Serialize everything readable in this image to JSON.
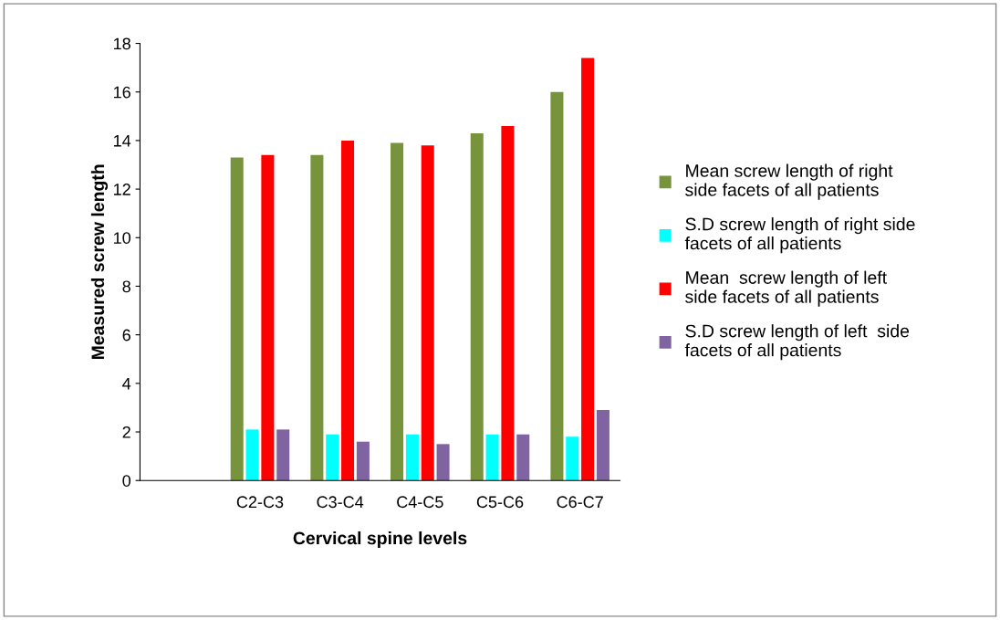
{
  "chart_data": {
    "type": "bar",
    "xlabel": "Cervical spine levels",
    "ylabel": "Measured screw length",
    "categories": [
      null,
      "C2-C3",
      "C3-C4",
      "C4-C5",
      "C5-C6",
      "C6-C7"
    ],
    "series": [
      {
        "name": "Mean screw length of right side facets of all patients",
        "color": "#77933c",
        "values": [
          null,
          13.3,
          13.4,
          13.9,
          14.3,
          16.0
        ]
      },
      {
        "name": "S.D screw length of right side facets of all patients",
        "color": "#00ffff",
        "values": [
          null,
          2.1,
          1.9,
          1.9,
          1.9,
          1.8
        ]
      },
      {
        "name": "Mean  screw length of left side facets of all patients",
        "color": "#ff0000",
        "values": [
          null,
          13.4,
          14.0,
          13.8,
          14.6,
          17.4
        ]
      },
      {
        "name": "S.D screw length of left  side facets of all patients",
        "color": "#8064a2",
        "values": [
          null,
          2.1,
          1.6,
          1.5,
          1.9,
          2.9
        ]
      }
    ],
    "ylim": [
      0,
      18
    ],
    "yticks": [
      0,
      2,
      4,
      6,
      8,
      10,
      12,
      14,
      16,
      18
    ],
    "grid": false,
    "legend": "right"
  }
}
